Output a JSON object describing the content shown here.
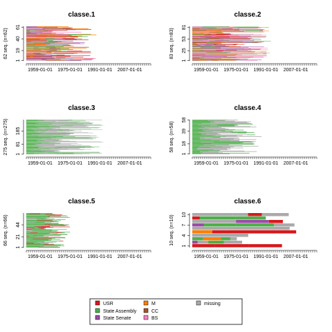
{
  "colors": {
    "USR": "#D7191C",
    "State Assembly": "#4DAF4A",
    "State Senate": "#984EA3",
    "M": "#FF7F00",
    "CC": "#A65628",
    "BS": "#F781BF",
    "missing": "#AAAAAA"
  },
  "legend": {
    "items": [
      {
        "label": "USR",
        "key": "USR"
      },
      {
        "label": "M",
        "key": "M"
      },
      {
        "label": "missing",
        "key": "missing"
      },
      {
        "label": "State Assembly",
        "key": "State Assembly"
      },
      {
        "label": "CC",
        "key": "CC"
      },
      {
        "label": "State Senate",
        "key": "State Senate"
      },
      {
        "label": "BS",
        "key": "BS"
      }
    ]
  },
  "chart_data": [
    {
      "type": "sequence-index",
      "title": "classe.1",
      "ylabel": "62 seq. (n=62)",
      "n_sequences": 62,
      "y_tick_labels": [
        "1",
        "19",
        "40",
        "61"
      ],
      "x_tick_labels": [
        "1959-01-01",
        "1975-01-01",
        "1991-01-01",
        "2007-01-01"
      ],
      "dominant_states": [
        "State Assembly",
        "State Senate",
        "M",
        "USR",
        "CC",
        "BS",
        "missing"
      ],
      "max_length_fraction": 0.57
    },
    {
      "type": "sequence-index",
      "title": "classe.2",
      "ylabel": "83 seq. (n=83)",
      "n_sequences": 83,
      "y_tick_labels": [
        "1",
        "25",
        "53",
        "81"
      ],
      "x_tick_labels": [
        "1959-01-01",
        "1975-01-01",
        "1991-01-01",
        "2007-01-01"
      ],
      "dominant_states": [
        "USR",
        "State Senate",
        "State Assembly",
        "M",
        "CC",
        "BS",
        "missing"
      ],
      "max_length_fraction": 0.64
    },
    {
      "type": "sequence-index",
      "title": "classe.3",
      "ylabel": "275 seq. (n=275)",
      "n_sequences": 275,
      "y_tick_labels": [
        "1",
        "81",
        "185"
      ],
      "x_tick_labels": [
        "1959-01-01",
        "1975-01-01",
        "1991-01-01",
        "2007-01-01"
      ],
      "dominant_states": [
        "State Assembly",
        "missing"
      ],
      "max_length_fraction": 0.62
    },
    {
      "type": "sequence-index",
      "title": "classe.4",
      "ylabel": "58 seq. (n=58)",
      "n_sequences": 58,
      "y_tick_labels": [
        "1",
        "18",
        "39",
        "58"
      ],
      "x_tick_labels": [
        "1959-01-01",
        "1975-01-01",
        "1991-01-01",
        "2007-01-01"
      ],
      "dominant_states": [
        "State Assembly",
        "missing"
      ],
      "max_length_fraction": 0.56
    },
    {
      "type": "sequence-index",
      "title": "classe.5",
      "ylabel": "66 seq. (n=66)",
      "n_sequences": 66,
      "y_tick_labels": [
        "1",
        "21",
        "44"
      ],
      "x_tick_labels": [
        "1959-01-01",
        "1975-01-01",
        "1991-01-01",
        "2007-01-01"
      ],
      "dominant_states": [
        "State Assembly",
        "USR",
        "missing"
      ],
      "max_length_fraction": 0.36
    },
    {
      "type": "sequence-index",
      "title": "classe.6",
      "ylabel": "10 seq. (n=10)",
      "n_sequences": 10,
      "y_tick_labels": [
        "1",
        "4",
        "7",
        "10"
      ],
      "x_tick_labels": [
        "1959-01-01",
        "1975-01-01",
        "1991-01-01",
        "2007-01-01"
      ],
      "dominant_states": [
        "State Assembly",
        "State Senate",
        "USR",
        "M",
        "missing"
      ],
      "max_length_fraction": 0.85
    }
  ]
}
